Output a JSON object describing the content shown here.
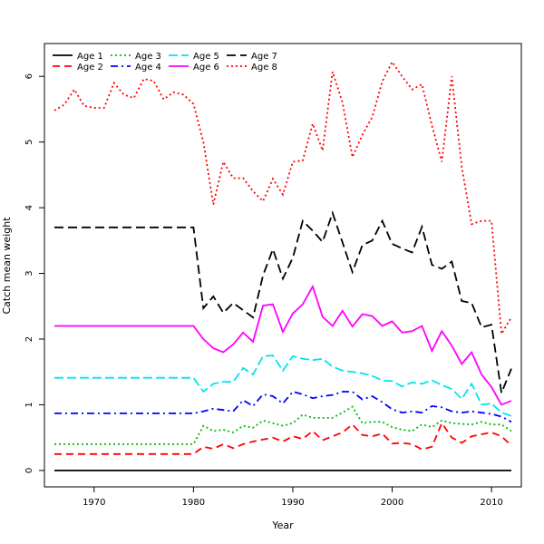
{
  "chart_data": {
    "type": "line",
    "title": "",
    "xlabel": "Year",
    "ylabel": "Catch mean weight",
    "xlim": [
      1965,
      2013
    ],
    "ylim": [
      -0.25,
      6.5
    ],
    "xticks": [
      1970,
      1980,
      1990,
      2000,
      2010
    ],
    "yticks": [
      0,
      1,
      2,
      3,
      4,
      5,
      6
    ],
    "legend_position": "top-left",
    "x": [
      1966,
      1967,
      1968,
      1969,
      1970,
      1971,
      1972,
      1973,
      1974,
      1975,
      1976,
      1977,
      1978,
      1979,
      1980,
      1981,
      1982,
      1983,
      1984,
      1985,
      1986,
      1987,
      1988,
      1989,
      1990,
      1991,
      1992,
      1993,
      1994,
      1995,
      1996,
      1997,
      1998,
      1999,
      2000,
      2001,
      2002,
      2003,
      2004,
      2005,
      2006,
      2007,
      2008,
      2009,
      2010,
      2011,
      2012
    ],
    "series": [
      {
        "name": "Age 1",
        "color": "#000000",
        "dash": "",
        "values": [
          0,
          0,
          0,
          0,
          0,
          0,
          0,
          0,
          0,
          0,
          0,
          0,
          0,
          0,
          0,
          0,
          0,
          0,
          0,
          0,
          0,
          0,
          0,
          0,
          0,
          0,
          0,
          0,
          0,
          0,
          0,
          0,
          0,
          0,
          0,
          0,
          0,
          0,
          0,
          0,
          0,
          0,
          0,
          0,
          0,
          0,
          0
        ]
      },
      {
        "name": "Age 2",
        "color": "#ff0000",
        "dash": "8,5",
        "values": [
          0.25,
          0.25,
          0.25,
          0.25,
          0.25,
          0.25,
          0.25,
          0.25,
          0.25,
          0.25,
          0.25,
          0.25,
          0.25,
          0.25,
          0.25,
          0.36,
          0.33,
          0.4,
          0.34,
          0.4,
          0.44,
          0.47,
          0.5,
          0.44,
          0.52,
          0.48,
          0.6,
          0.46,
          0.52,
          0.58,
          0.7,
          0.54,
          0.52,
          0.56,
          0.41,
          0.42,
          0.4,
          0.32,
          0.36,
          0.72,
          0.5,
          0.42,
          0.52,
          0.55,
          0.58,
          0.52,
          0.38
        ]
      },
      {
        "name": "Age 3",
        "color": "#00bb00",
        "dash": "2,3",
        "values": [
          0.4,
          0.4,
          0.4,
          0.4,
          0.4,
          0.4,
          0.4,
          0.4,
          0.4,
          0.4,
          0.4,
          0.4,
          0.4,
          0.4,
          0.4,
          0.68,
          0.6,
          0.62,
          0.58,
          0.68,
          0.65,
          0.76,
          0.72,
          0.68,
          0.72,
          0.85,
          0.8,
          0.8,
          0.8,
          0.88,
          0.97,
          0.72,
          0.74,
          0.74,
          0.66,
          0.62,
          0.6,
          0.7,
          0.66,
          0.76,
          0.72,
          0.71,
          0.7,
          0.74,
          0.7,
          0.7,
          0.6
        ]
      },
      {
        "name": "Age 4",
        "color": "#0000ff",
        "dash": "8,4,2,4",
        "values": [
          0.87,
          0.87,
          0.87,
          0.87,
          0.87,
          0.87,
          0.87,
          0.87,
          0.87,
          0.87,
          0.87,
          0.87,
          0.87,
          0.87,
          0.87,
          0.9,
          0.94,
          0.92,
          0.9,
          1.07,
          0.98,
          1.16,
          1.13,
          1.02,
          1.2,
          1.16,
          1.1,
          1.13,
          1.15,
          1.2,
          1.2,
          1.08,
          1.13,
          1.04,
          0.93,
          0.88,
          0.9,
          0.88,
          0.98,
          0.96,
          0.9,
          0.88,
          0.9,
          0.88,
          0.86,
          0.82,
          0.74
        ]
      },
      {
        "name": "Age 5",
        "color": "#00e5ee",
        "dash": "10,4",
        "values": [
          1.41,
          1.41,
          1.41,
          1.41,
          1.41,
          1.41,
          1.41,
          1.41,
          1.41,
          1.41,
          1.41,
          1.41,
          1.41,
          1.41,
          1.41,
          1.2,
          1.32,
          1.35,
          1.35,
          1.56,
          1.46,
          1.74,
          1.75,
          1.52,
          1.74,
          1.7,
          1.68,
          1.7,
          1.58,
          1.52,
          1.5,
          1.48,
          1.44,
          1.37,
          1.36,
          1.28,
          1.34,
          1.32,
          1.37,
          1.3,
          1.24,
          1.09,
          1.32,
          1.0,
          1.02,
          0.88,
          0.83
        ]
      },
      {
        "name": "Age 6",
        "color": "#ff00ff",
        "dash": "",
        "values": [
          2.2,
          2.2,
          2.2,
          2.2,
          2.2,
          2.2,
          2.2,
          2.2,
          2.2,
          2.2,
          2.2,
          2.2,
          2.2,
          2.2,
          2.2,
          2.0,
          1.86,
          1.8,
          1.92,
          2.1,
          1.96,
          2.51,
          2.53,
          2.11,
          2.39,
          2.53,
          2.8,
          2.34,
          2.2,
          2.43,
          2.19,
          2.38,
          2.35,
          2.2,
          2.27,
          2.1,
          2.12,
          2.2,
          1.82,
          2.12,
          1.9,
          1.62,
          1.8,
          1.46,
          1.27,
          1.0,
          1.06
        ]
      },
      {
        "name": "Age 7",
        "color": "#000000",
        "dash": "10,5",
        "values": [
          3.7,
          3.7,
          3.7,
          3.7,
          3.7,
          3.7,
          3.7,
          3.7,
          3.7,
          3.7,
          3.7,
          3.7,
          3.7,
          3.7,
          3.7,
          2.47,
          2.65,
          2.4,
          2.55,
          2.44,
          2.33,
          2.97,
          3.37,
          2.92,
          3.24,
          3.8,
          3.65,
          3.48,
          3.92,
          3.47,
          3.02,
          3.43,
          3.5,
          3.8,
          3.45,
          3.38,
          3.32,
          3.71,
          3.13,
          3.07,
          3.18,
          2.58,
          2.55,
          2.18,
          2.22,
          1.18,
          1.55
        ]
      },
      {
        "name": "Age 8",
        "color": "#ff0000",
        "dash": "2,3",
        "values": [
          5.48,
          5.57,
          5.8,
          5.55,
          5.52,
          5.52,
          5.9,
          5.72,
          5.67,
          5.96,
          5.93,
          5.65,
          5.76,
          5.72,
          5.58,
          5.0,
          4.05,
          4.7,
          4.45,
          4.45,
          4.25,
          4.1,
          4.44,
          4.2,
          4.7,
          4.72,
          5.28,
          4.87,
          6.07,
          5.6,
          4.77,
          5.11,
          5.38,
          5.92,
          6.22,
          6.0,
          5.8,
          5.88,
          5.25,
          4.7,
          6.0,
          4.62,
          3.75,
          3.8,
          3.8,
          2.08,
          2.33
        ]
      }
    ]
  }
}
